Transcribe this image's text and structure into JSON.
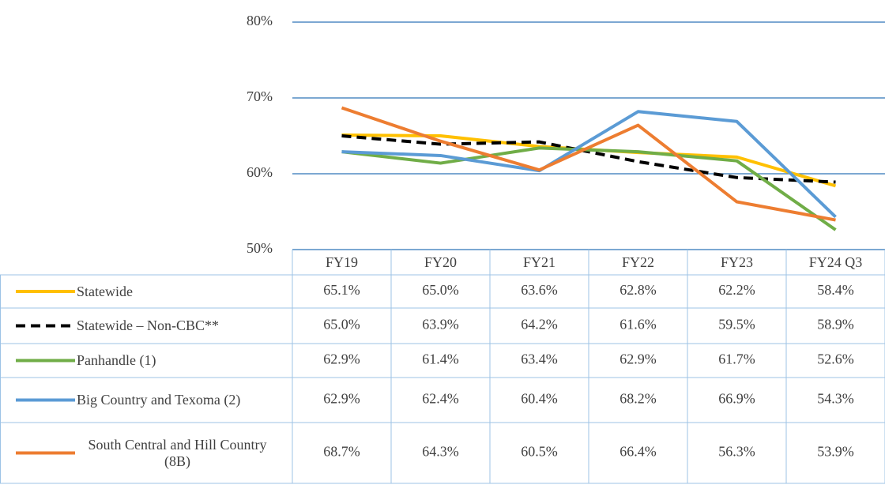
{
  "chart_data": {
    "type": "line",
    "categories": [
      "FY19",
      "FY20",
      "FY21",
      "FY22",
      "FY23",
      "FY24 Q3"
    ],
    "series": [
      {
        "name": "Statewide",
        "color": "#ffc000",
        "line_style": "solid",
        "values": [
          65.1,
          65.0,
          63.6,
          62.8,
          62.2,
          58.4
        ],
        "value_labels": [
          "65.1%",
          "65.0%",
          "63.6%",
          "62.8%",
          "62.2%",
          "58.4%"
        ]
      },
      {
        "name": "Statewide – Non-CBC**",
        "color": "#000000",
        "line_style": "dashed",
        "values": [
          65.0,
          63.9,
          64.2,
          61.6,
          59.5,
          58.9
        ],
        "value_labels": [
          "65.0%",
          "63.9%",
          "64.2%",
          "61.6%",
          "59.5%",
          "58.9%"
        ]
      },
      {
        "name": "Panhandle (1)",
        "color": "#70ad47",
        "line_style": "solid",
        "values": [
          62.9,
          61.4,
          63.4,
          62.9,
          61.7,
          52.6
        ],
        "value_labels": [
          "62.9%",
          "61.4%",
          "63.4%",
          "62.9%",
          "61.7%",
          "52.6%"
        ]
      },
      {
        "name": "Big Country and Texoma (2)",
        "color": "#5b9bd5",
        "line_style": "solid",
        "values": [
          62.9,
          62.4,
          60.4,
          68.2,
          66.9,
          54.3
        ],
        "value_labels": [
          "62.9%",
          "62.4%",
          "60.4%",
          "68.2%",
          "66.9%",
          "54.3%"
        ]
      },
      {
        "name": "South Central and Hill Country (8B)",
        "color": "#ed7d31",
        "line_style": "solid",
        "values": [
          68.7,
          64.3,
          60.5,
          66.4,
          56.3,
          53.9
        ],
        "value_labels": [
          "68.7%",
          "64.3%",
          "60.5%",
          "66.4%",
          "56.3%",
          "53.9%"
        ]
      }
    ],
    "ylim": [
      50,
      80
    ],
    "yticks": [
      {
        "value": 50,
        "label": "50%"
      },
      {
        "value": 60,
        "label": "60%"
      },
      {
        "value": 70,
        "label": "70%"
      },
      {
        "value": 80,
        "label": "80%"
      }
    ],
    "grid": true
  }
}
